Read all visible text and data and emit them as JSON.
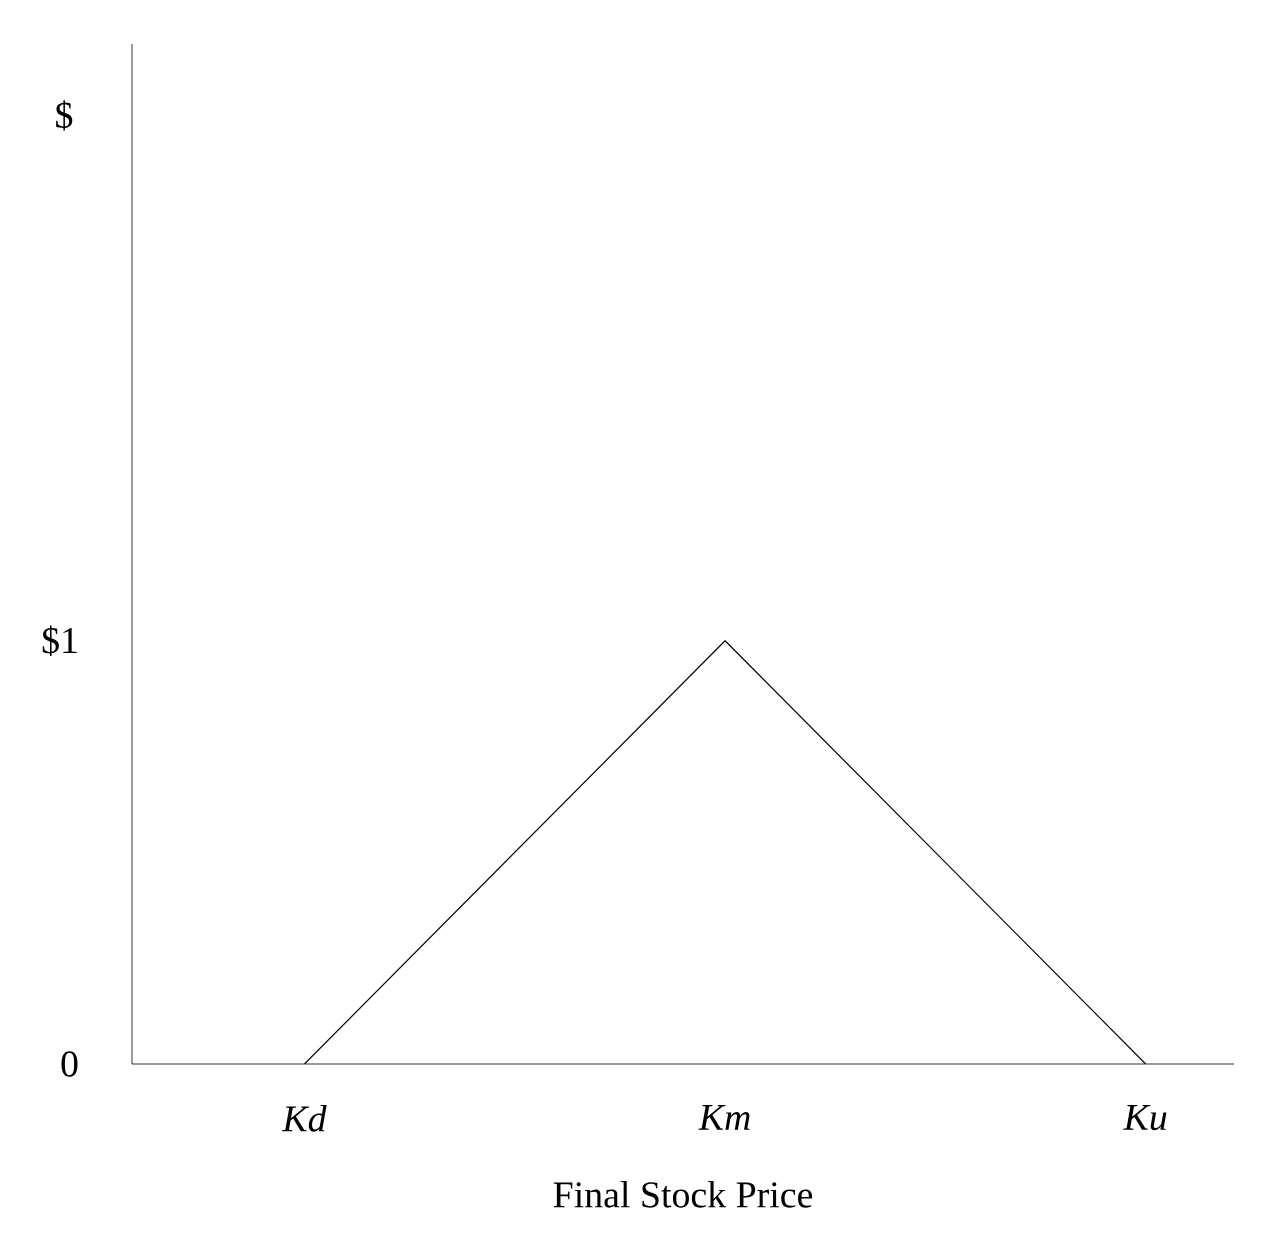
{
  "chart_data": {
    "type": "line",
    "xlabel": "Final Stock Price",
    "ylabel": "$",
    "categories": [
      "Kd",
      "Km",
      "Ku"
    ],
    "series": [
      {
        "color": "#000000",
        "values": [
          0,
          1,
          0
        ]
      }
    ],
    "ylim": [
      0,
      2.41
    ],
    "yticks": [
      {
        "value": 0,
        "label": "0"
      },
      {
        "value": 1,
        "label": "$1"
      }
    ],
    "grid": false,
    "marker": "none",
    "line_style": "solid"
  }
}
